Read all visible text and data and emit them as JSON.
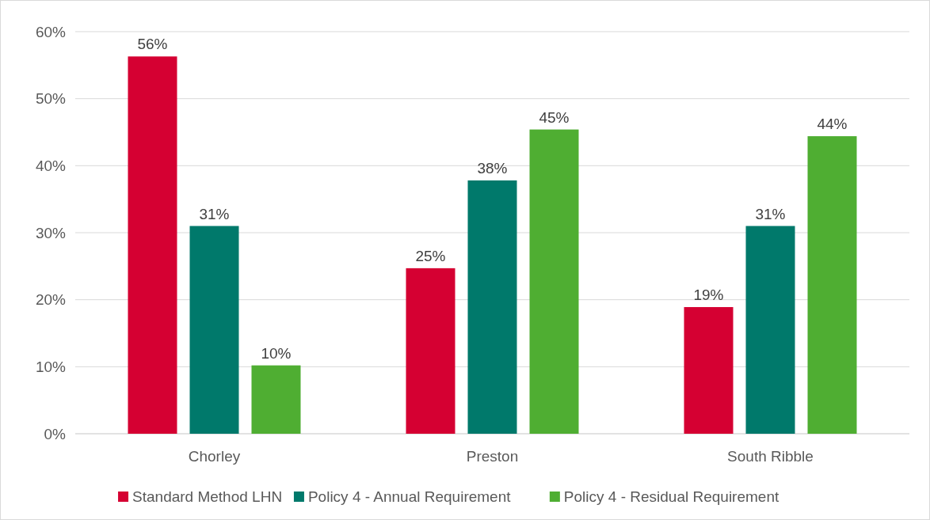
{
  "chart_data": {
    "type": "bar",
    "categories": [
      "Chorley",
      "Preston",
      "South Ribble"
    ],
    "series": [
      {
        "name": "Standard Method LHN",
        "color": "#d50032",
        "values": [
          56.3,
          24.7,
          18.9
        ],
        "value_labels": [
          "56%",
          "25%",
          "19%"
        ]
      },
      {
        "name": "Policy 4 - Annual Requirement",
        "color": "#00796b",
        "values": [
          31.0,
          37.8,
          31.0
        ],
        "value_labels": [
          "31%",
          "38%",
          "31%"
        ]
      },
      {
        "name": "Policy 4 - Residual Requirement",
        "color": "#4fae32",
        "values": [
          10.2,
          45.4,
          44.4
        ],
        "value_labels": [
          "10%",
          "45%",
          "44%"
        ]
      }
    ],
    "ylim": [
      0,
      60
    ],
    "yticks": [
      {
        "value": 0,
        "label": "0%"
      },
      {
        "value": 10,
        "label": "10%"
      },
      {
        "value": 20,
        "label": "20%"
      },
      {
        "value": 30,
        "label": "30%"
      },
      {
        "value": 40,
        "label": "40%"
      },
      {
        "value": 50,
        "label": "50%"
      },
      {
        "value": 60,
        "label": "60%"
      }
    ],
    "grid": "y",
    "legend": "bottom"
  }
}
